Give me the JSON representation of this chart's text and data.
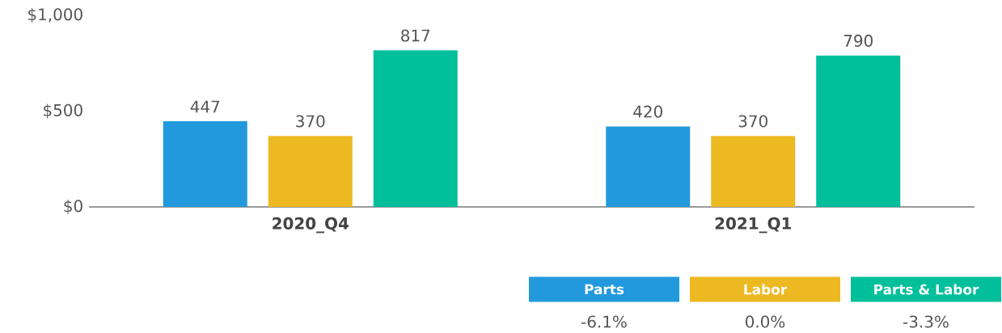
{
  "chart_data": {
    "type": "bar",
    "categories": [
      "2020_Q4",
      "2021_Q1"
    ],
    "series": [
      {
        "name": "Parts",
        "color": "#2299dd",
        "values": [
          447,
          420
        ]
      },
      {
        "name": "Labor",
        "color": "#edb922",
        "values": [
          370,
          370
        ]
      },
      {
        "name": "Parts & Labor",
        "color": "#00bf9a",
        "values": [
          817,
          790
        ]
      }
    ],
    "ylim": [
      0,
      1000
    ],
    "yticks": [
      {
        "value": 0,
        "label": "$0"
      },
      {
        "value": 500,
        "label": "$500"
      },
      {
        "value": 1000,
        "label": "$1,000"
      }
    ],
    "data_labels": true,
    "legend": "bottom right",
    "annotations": [
      "-6.1%",
      "0.0%",
      "-3.3%"
    ]
  }
}
